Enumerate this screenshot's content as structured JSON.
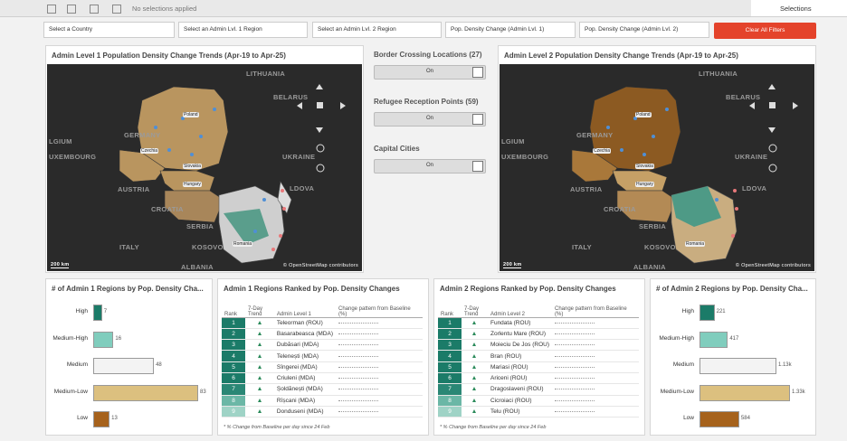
{
  "toolbar": {
    "status": "No selections applied",
    "selections": "Selections"
  },
  "filters": [
    "Select a Country",
    "Select an Admin Lvl. 1 Region",
    "Select an Admin Lvl. 2 Region",
    "Pop. Density Change (Admin Lvl. 1)",
    "Pop. Density Change (Admin Lvl. 2)"
  ],
  "clear_button": "Clear All Filters",
  "map1": {
    "title": "Admin Level 1 Population Density Change Trends (Apr-19 to Apr-25)",
    "labels": [
      "LITHUANIA",
      "BELARUS",
      "GERMANY",
      "LGIUM",
      "UXEMBOURG",
      "UKRAINE",
      "AUSTRIA",
      "LDOVA",
      "CROATIA",
      "SERBIA",
      "ITALY",
      "KOSOVO",
      "ALBANIA",
      "Poland",
      "Czechia",
      "Slovakia",
      "Hungary",
      "Romania"
    ],
    "scale": "200 km",
    "attribution": "© OpenStreetMap contributors"
  },
  "layers": [
    {
      "title": "Border Crossing Locations (27)",
      "toggle": "On"
    },
    {
      "title": "Refugee Reception Points (59)",
      "toggle": "On"
    },
    {
      "title": "Capital Cities",
      "toggle": "On"
    }
  ],
  "map2": {
    "title": "Admin Level 2 Population Density Change Trends (Apr-19 to Apr-25)",
    "labels": [
      "LITHUANIA",
      "BELARUS",
      "GERMANY",
      "LGIUM",
      "UXEMBOURG",
      "UKRAINE",
      "AUSTRIA",
      "LDOVA",
      "CROATIA",
      "SERBIA",
      "ITALY",
      "KOSOVO",
      "ALBANIA",
      "Poland",
      "Czechia",
      "Slovakia",
      "Hungary",
      "Romania"
    ],
    "scale": "200 km",
    "attribution": "© OpenStreetMap contributors"
  },
  "admin1_bars": {
    "title": "# of Admin 1 Regions by Pop. Density Cha...",
    "categories": [
      "High",
      "Medium-High",
      "Medium",
      "Medium-Low",
      "Low"
    ],
    "values": [
      7,
      16,
      48,
      83,
      13
    ],
    "colors": [
      "#1b7b68",
      "#80cdbd",
      "#f3f3f3",
      "#dcc07f",
      "#a6621c"
    ]
  },
  "admin1_table": {
    "title": "Admin 1 Regions Ranked by Pop. Density Changes",
    "columns": [
      "Rank",
      "7-Day Trend",
      "Admin Level 1",
      "Change pattern from Baseline (%)"
    ],
    "rows": [
      [
        1,
        "Teleorman (ROU)"
      ],
      [
        2,
        "Basarabeasca (MDA)"
      ],
      [
        3,
        "Dubăsari (MDA)"
      ],
      [
        4,
        "Telenești (MDA)"
      ],
      [
        5,
        "Sîngerei (MDA)"
      ],
      [
        6,
        "Criuleni (MDA)"
      ],
      [
        7,
        "Șoldănești (MDA)"
      ],
      [
        8,
        "Rîșcani (MDA)"
      ],
      [
        9,
        "Donduseni (MDA)"
      ]
    ],
    "footnote": "* % Change from Baseline per day since 24 Feb"
  },
  "admin2_table": {
    "title": "Admin 2 Regions Ranked by Pop. Density Changes",
    "columns": [
      "Rank",
      "7-Day Trend",
      "Admin Level 2",
      "Change pattern from Baseline (%)"
    ],
    "rows": [
      [
        1,
        "Fundata (ROU)"
      ],
      [
        2,
        "Zorlentu Mare (ROU)"
      ],
      [
        3,
        "Moieciu De Jos (ROU)"
      ],
      [
        4,
        "Bran (ROU)"
      ],
      [
        5,
        "Mariasi (ROU)"
      ],
      [
        6,
        "Ariceni (ROU)"
      ],
      [
        7,
        "Dragoslaveni (ROU)"
      ],
      [
        8,
        "Cicroiaci (ROU)"
      ],
      [
        9,
        "Telu (ROU)"
      ]
    ],
    "footnote": "* % Change from Baseline per day since 24 Feb"
  },
  "admin2_bars": {
    "title": "# of Admin 2 Regions by Pop. Density Cha...",
    "categories": [
      "High",
      "Medium-High",
      "Medium",
      "Medium-Low",
      "Low"
    ],
    "values": [
      221,
      417,
      1130,
      1330,
      584
    ],
    "value_labels": [
      "221",
      "417",
      "1.13k",
      "1.33k",
      "584"
    ],
    "colors": [
      "#1b7b68",
      "#80cdbd",
      "#f3f3f3",
      "#dcc07f",
      "#a6621c"
    ]
  }
}
